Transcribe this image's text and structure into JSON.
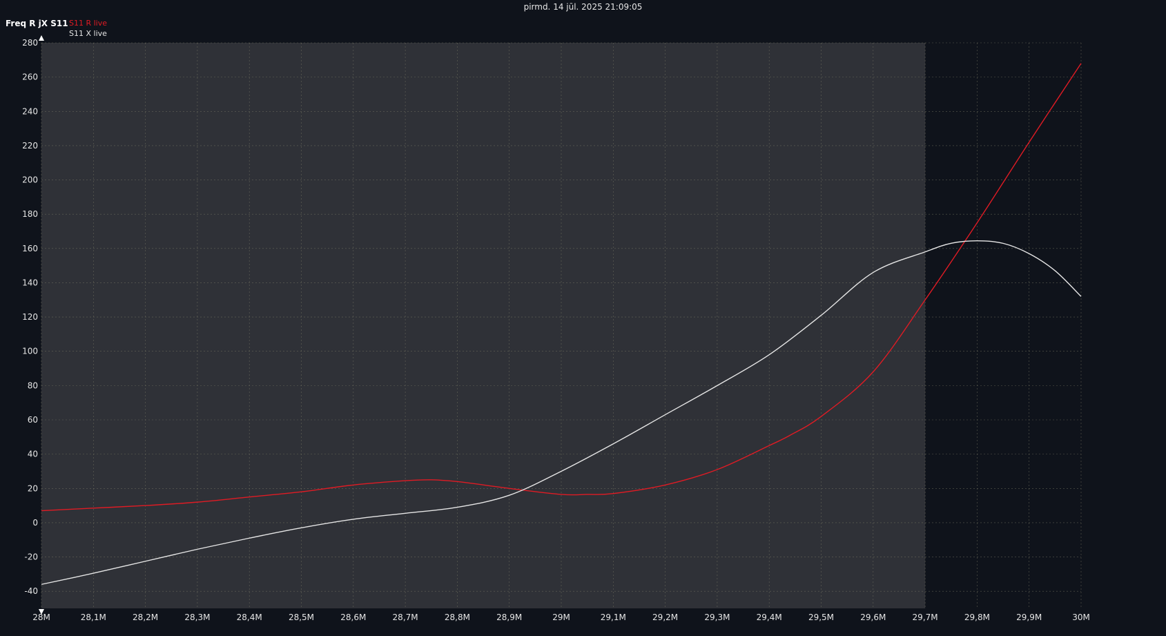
{
  "header": {
    "timestamp": "pirmd. 14 jūl. 2025 21:09:05",
    "title": "Freq R jX S11"
  },
  "legend": [
    {
      "label": "S11 R live",
      "color": "#e01b24"
    },
    {
      "label": "S11 X live",
      "color": "#e6e6e6"
    }
  ],
  "colors": {
    "background": "#0f131b",
    "shaded_region": "#2f3137",
    "grid": "#7a7a66",
    "text": "#e6e6e6"
  },
  "chart_data": {
    "type": "line",
    "title": "Freq R jX S11",
    "xlabel": "",
    "ylabel": "",
    "xlim": [
      28.0,
      30.0
    ],
    "ylim": [
      -50,
      280
    ],
    "grid": true,
    "legend_placement": "top-left",
    "x_ticks": [
      "28M",
      "28,1M",
      "28,2M",
      "28,3M",
      "28,4M",
      "28,5M",
      "28,6M",
      "28,7M",
      "28,8M",
      "28,9M",
      "29M",
      "29,1M",
      "29,2M",
      "29,3M",
      "29,4M",
      "29,5M",
      "29,6M",
      "29,7M",
      "29,8M",
      "29,9M",
      "30M"
    ],
    "y_ticks": [
      "280",
      "260",
      "240",
      "220",
      "200",
      "180",
      "160",
      "140",
      "120",
      "100",
      "80",
      "60",
      "40",
      "20",
      "0",
      "-20",
      "-40"
    ],
    "shaded_range_x": [
      28.0,
      29.7
    ],
    "series": [
      {
        "name": "S11 R live",
        "color": "#e01b24",
        "x": [
          28.0,
          28.1,
          28.2,
          28.3,
          28.4,
          28.5,
          28.6,
          28.7,
          28.75,
          28.8,
          28.9,
          29.0,
          29.05,
          29.1,
          29.2,
          29.3,
          29.4,
          29.44,
          29.5,
          29.6,
          29.7,
          29.8,
          29.9,
          30.0
        ],
        "y": [
          7,
          8.5,
          10,
          12,
          15,
          18,
          22,
          24.5,
          25,
          24,
          20,
          16.5,
          16.5,
          17,
          22,
          31,
          45,
          51,
          62,
          88,
          130,
          175,
          222,
          268
        ]
      },
      {
        "name": "S11 X live",
        "color": "#e6e6e6",
        "x": [
          28.0,
          28.1,
          28.2,
          28.3,
          28.4,
          28.5,
          28.6,
          28.7,
          28.8,
          28.9,
          29.0,
          29.1,
          29.2,
          29.3,
          29.4,
          29.5,
          29.6,
          29.7,
          29.75,
          29.8,
          29.85,
          29.9,
          29.95,
          30.0
        ],
        "y": [
          -36,
          -29.5,
          -22.5,
          -15.5,
          -9,
          -3,
          2,
          5.5,
          9,
          16,
          30,
          46,
          63,
          80,
          98,
          121,
          146,
          158,
          163,
          164.5,
          163,
          157,
          147,
          132
        ]
      }
    ]
  }
}
